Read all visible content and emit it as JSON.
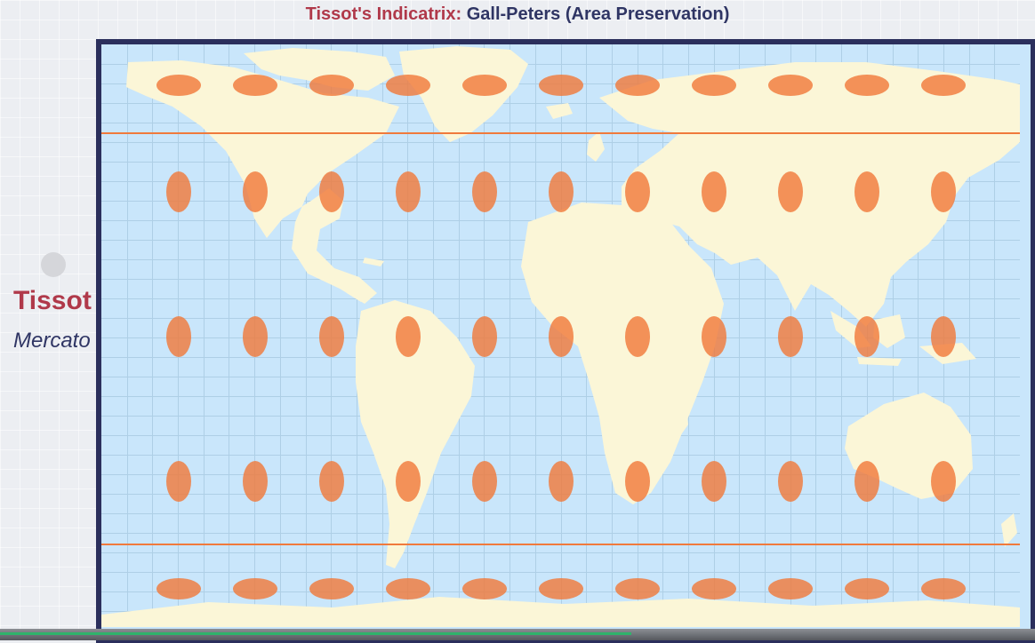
{
  "header": {
    "title_prefix": "Tissot's Indicatrix:",
    "title_main": "Gall-Peters (Area Preservation)"
  },
  "side_panel": {
    "heading": "Tissot",
    "subtitle": "Mercato"
  },
  "map": {
    "projection": "Gall-Peters",
    "colors": {
      "ocean": "#c9e6fb",
      "land": "#fbf6d7",
      "graticule": "#aecfe6",
      "indicatrix": "#f07a3c",
      "boundary_line": "#f07a3c",
      "frame": "#2b2f5c"
    },
    "indicatrix_grid": {
      "columns": 11,
      "rows": 5,
      "row_shapes": [
        "wide",
        "tall",
        "tall",
        "tall",
        "wide"
      ]
    }
  },
  "player": {
    "progress": 0.61
  }
}
